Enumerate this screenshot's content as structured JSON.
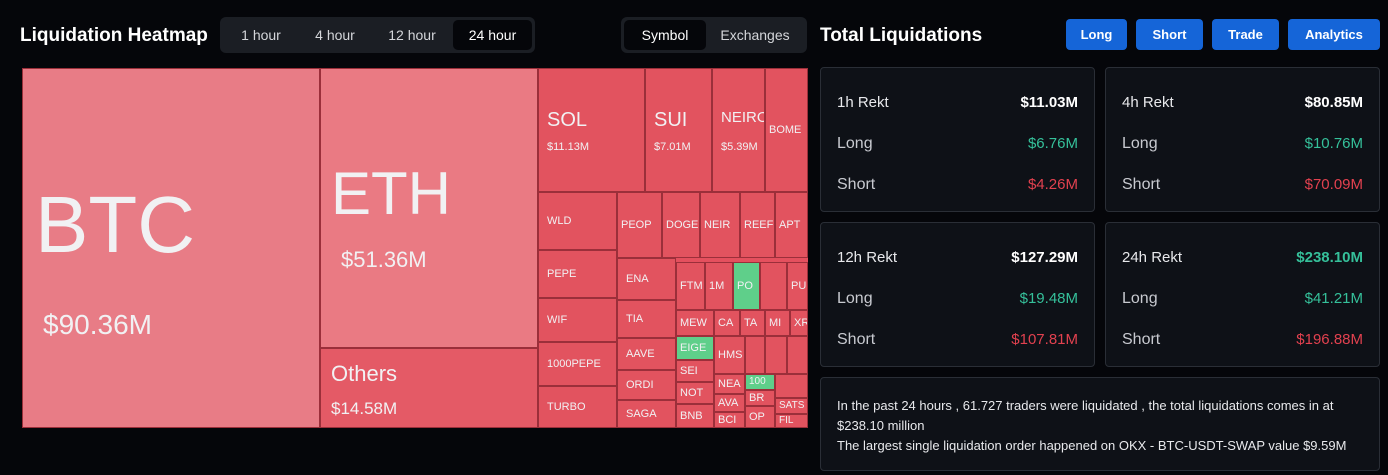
{
  "heatmap": {
    "title": "Liquidation Heatmap",
    "time_tabs": [
      "1 hour",
      "4 hour",
      "12 hour",
      "24 hour"
    ],
    "view_tabs": [
      "Symbol",
      "Exchanges"
    ],
    "tiles": [
      {
        "symbol": "BTC",
        "value": "$90.36M"
      },
      {
        "symbol": "ETH",
        "value": "$51.36M"
      },
      {
        "symbol": "Others",
        "value": "$14.58M"
      },
      {
        "symbol": "SOL",
        "value": "$11.13M"
      },
      {
        "symbol": "SUI",
        "value": "$7.01M"
      },
      {
        "symbol": "NEIRO",
        "value": "$5.39M"
      },
      {
        "symbol": "BOME"
      },
      {
        "symbol": "WLD"
      },
      {
        "symbol": "PEOP"
      },
      {
        "symbol": "DOGE"
      },
      {
        "symbol": "NEIR"
      },
      {
        "symbol": "REEF"
      },
      {
        "symbol": "APT"
      },
      {
        "symbol": "PEPE"
      },
      {
        "symbol": "WIF"
      },
      {
        "symbol": "1000PEPE"
      },
      {
        "symbol": "TURBO"
      },
      {
        "symbol": "ENA"
      },
      {
        "symbol": "TIA"
      },
      {
        "symbol": "AAVE"
      },
      {
        "symbol": "ORDI"
      },
      {
        "symbol": "SAGA"
      },
      {
        "symbol": "FTM"
      },
      {
        "symbol": "1M"
      },
      {
        "symbol": "PO"
      },
      {
        "symbol": "PU"
      },
      {
        "symbol": "MEW"
      },
      {
        "symbol": "CA"
      },
      {
        "symbol": "TA"
      },
      {
        "symbol": "MI"
      },
      {
        "symbol": "XR"
      },
      {
        "symbol": "EIGE"
      },
      {
        "symbol": "HMS"
      },
      {
        "symbol": "SEI"
      },
      {
        "symbol": "NOT"
      },
      {
        "symbol": "BNB"
      },
      {
        "symbol": "NEA"
      },
      {
        "symbol": "AVA"
      },
      {
        "symbol": "BCI"
      },
      {
        "symbol": "100"
      },
      {
        "symbol": "BR"
      },
      {
        "symbol": "OP"
      },
      {
        "symbol": "SATS"
      },
      {
        "symbol": "FIL"
      }
    ]
  },
  "totals": {
    "title": "Total Liquidations",
    "buttons": [
      "Long",
      "Short",
      "Trade",
      "Analytics"
    ],
    "cards": [
      {
        "label": "1h Rekt",
        "total": "$11.03M",
        "long_label": "Long",
        "long": "$6.76M",
        "short_label": "Short",
        "short": "$4.26M"
      },
      {
        "label": "4h Rekt",
        "total": "$80.85M",
        "long_label": "Long",
        "long": "$10.76M",
        "short_label": "Short",
        "short": "$70.09M"
      },
      {
        "label": "12h Rekt",
        "total": "$127.29M",
        "long_label": "Long",
        "long": "$19.48M",
        "short_label": "Short",
        "short": "$107.81M"
      },
      {
        "label": "24h Rekt",
        "total": "$238.10M",
        "long_label": "Long",
        "long": "$41.21M",
        "short_label": "Short",
        "short": "$196.88M"
      }
    ],
    "summary": [
      "In the past 24 hours , 61.727 traders were liquidated , the total liquidations comes in at $238.10 million",
      "The largest single liquidation order happened on OKX - BTC-USDT-SWAP value $9.59M"
    ]
  }
}
